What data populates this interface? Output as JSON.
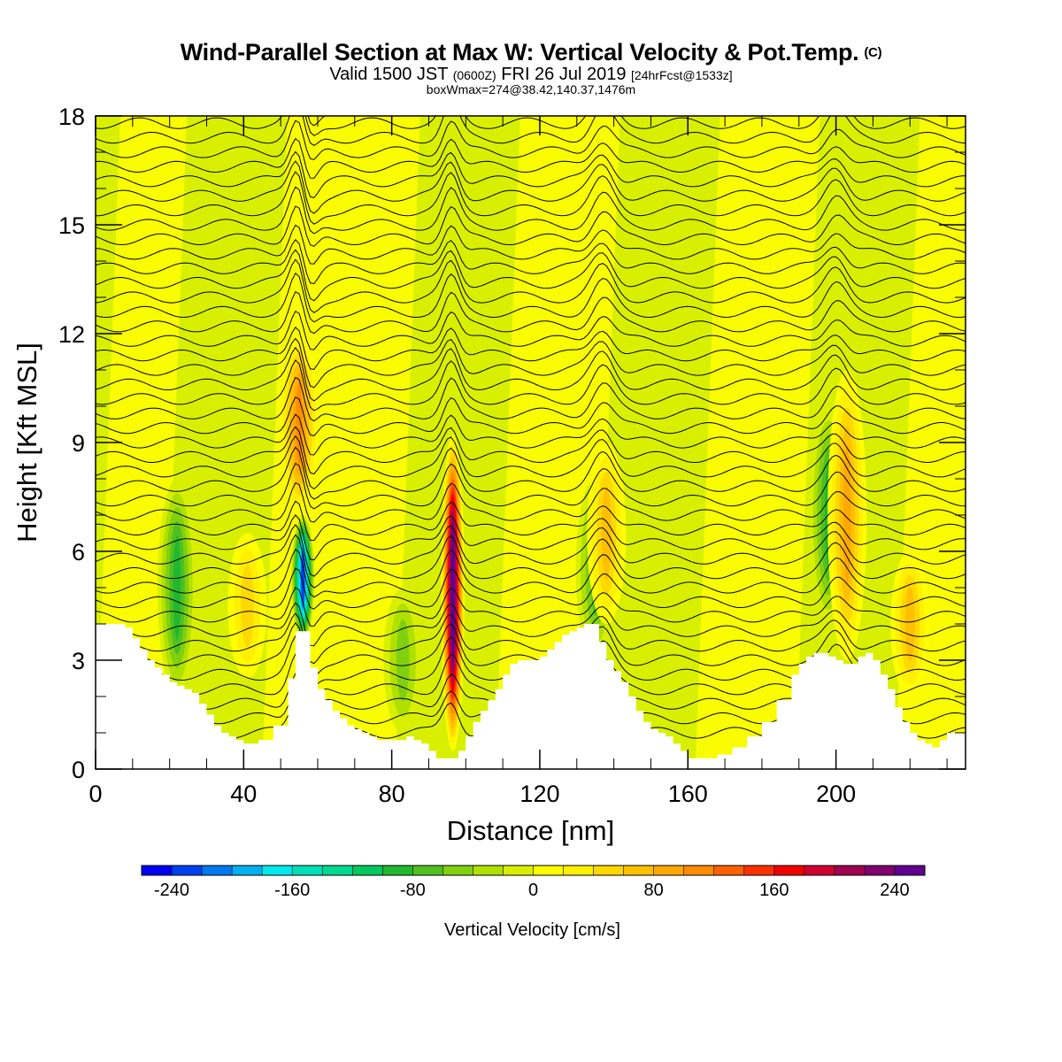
{
  "title": "Wind-Parallel Section at Max W: Vertical Velocity & Pot.Temp.",
  "title_mark": "(C)",
  "subtitle": {
    "part1": "Valid 1500 JST",
    "part2": "(0600Z)",
    "part3": "FRI 26 Jul 2019",
    "part4": "[24hrFcst@1533z]"
  },
  "info": "boxWmax=274@38.42,140.37,1476m",
  "chart_data": {
    "type": "heatmap",
    "xlabel": "Distance [nm]",
    "ylabel": "Height [Kft MSL]",
    "xlim": [
      0,
      235
    ],
    "ylim": [
      0,
      18
    ],
    "x_ticks": [
      0,
      40,
      80,
      120,
      160,
      200
    ],
    "y_ticks": [
      0,
      3,
      6,
      9,
      12,
      15,
      18
    ],
    "colorbar": {
      "label": "Vertical Velocity [cm/s]",
      "min": -260,
      "max": 260,
      "step": 20,
      "tick_labels": [
        "-240",
        "-160",
        "-80",
        "0",
        "80",
        "160",
        "240"
      ],
      "colors": [
        "#0000f0",
        "#0040f0",
        "#0078f0",
        "#00b0f0",
        "#00e8f0",
        "#00e0b8",
        "#00d890",
        "#00c860",
        "#20b830",
        "#50c020",
        "#80d010",
        "#b0e000",
        "#d8f000",
        "#ffff00",
        "#fff000",
        "#ffd800",
        "#ffc000",
        "#ffa800",
        "#ff8c00",
        "#ff6000",
        "#ff3000",
        "#f00000",
        "#d00030",
        "#a00050",
        "#800070",
        "#600090"
      ]
    },
    "terrain": {
      "x": [
        0,
        5,
        8,
        10,
        12,
        14,
        16,
        18,
        20,
        22,
        24,
        26,
        28,
        30,
        32,
        34,
        36,
        38,
        40,
        44,
        48,
        52,
        54,
        56,
        58,
        60,
        62,
        64,
        66,
        68,
        70,
        72,
        74,
        76,
        78,
        80,
        82,
        84,
        86,
        88,
        90,
        92,
        94,
        96,
        98,
        100,
        102,
        104,
        106,
        108,
        110,
        112,
        114,
        116,
        118,
        120,
        122,
        124,
        126,
        128,
        130,
        132,
        134,
        136,
        138,
        140,
        142,
        144,
        146,
        148,
        150,
        152,
        154,
        156,
        158,
        160,
        164,
        168,
        172,
        176,
        180,
        184,
        188,
        190,
        192,
        194,
        196,
        198,
        200,
        202,
        204,
        206,
        208,
        210,
        212,
        214,
        216,
        218,
        220,
        222,
        224,
        226,
        228,
        230,
        232,
        235
      ],
      "y": [
        4,
        4,
        3.9,
        3.6,
        3.3,
        3.0,
        2.8,
        2.6,
        2.4,
        2.3,
        2.2,
        2.1,
        1.8,
        1.5,
        1.2,
        1.0,
        0.9,
        0.8,
        0.7,
        0.8,
        1.2,
        2.5,
        3.8,
        3.8,
        2.8,
        2.2,
        1.9,
        1.6,
        1.4,
        1.2,
        1.1,
        1.0,
        0.9,
        0.8,
        0.8,
        0.8,
        0.8,
        0.9,
        0.8,
        0.7,
        0.5,
        0.3,
        0.3,
        0.3,
        0.5,
        0.9,
        1.3,
        1.6,
        1.9,
        2.2,
        2.6,
        2.9,
        3.0,
        3.0,
        3.0,
        3.1,
        3.3,
        3.5,
        3.7,
        3.8,
        3.9,
        4.0,
        4.0,
        3.5,
        3.0,
        2.7,
        2.4,
        2.0,
        1.6,
        1.3,
        1.1,
        1.0,
        0.9,
        0.7,
        0.5,
        0.3,
        0.3,
        0.4,
        0.6,
        0.9,
        1.3,
        1.9,
        2.6,
        2.9,
        3.1,
        3.2,
        3.2,
        3.1,
        3.0,
        2.9,
        2.9,
        3.1,
        3.2,
        3.0,
        2.6,
        2.2,
        1.7,
        1.3,
        1.0,
        0.8,
        0.7,
        0.6,
        0.8,
        1.0,
        1.0,
        1.0
      ]
    },
    "velocity_features": [
      {
        "x": 96.5,
        "y": [
          0.5,
          9.2
        ],
        "peak": 274
      },
      {
        "x": 56,
        "y": [
          3.5,
          7
        ],
        "peak": -230
      },
      {
        "x": 55,
        "y": [
          7,
          12
        ],
        "peak": 110
      },
      {
        "x": 41,
        "y": [
          2.5,
          6.5
        ],
        "peak": 60
      },
      {
        "x": 22,
        "y": [
          2,
          8
        ],
        "peak": -90
      },
      {
        "x": 135,
        "y": [
          3,
          8
        ],
        "peak": -70
      },
      {
        "x": 138,
        "y": [
          4,
          9
        ],
        "peak": 80
      },
      {
        "x": 198,
        "y": [
          4,
          10
        ],
        "peak": -100
      },
      {
        "x": 203,
        "y": [
          3,
          11
        ],
        "peak": 90
      },
      {
        "x": 220,
        "y": [
          2,
          6
        ],
        "peak": 70
      },
      {
        "x": 83,
        "y": [
          1,
          5
        ],
        "peak": -60
      }
    ]
  }
}
